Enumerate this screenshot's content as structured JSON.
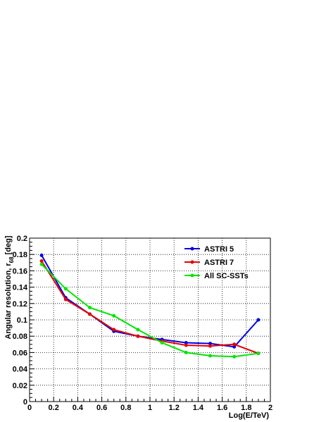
{
  "chart_data": {
    "type": "line",
    "title": "",
    "xlabel": "Log(E/TeV)",
    "ylabel": "Angular resolution, r",
    "ylabel_subscript": "68",
    "ylabel_unit": "[deg]",
    "xlim": [
      0,
      2
    ],
    "ylim": [
      0,
      0.2
    ],
    "x_ticks": [
      "0",
      "0.2",
      "0.4",
      "0.6",
      "0.8",
      "1",
      "1.2",
      "1.4",
      "1.6",
      "1.8",
      "2"
    ],
    "y_ticks": [
      "0",
      "0.02",
      "0.04",
      "0.06",
      "0.08",
      "0.1",
      "0.12",
      "0.14",
      "0.16",
      "0.18",
      "0.2"
    ],
    "grid": true,
    "legend_position": "top-right",
    "series": [
      {
        "name": "ASTRI 5",
        "color": "#0000e6",
        "x": [
          0.1,
          0.3,
          0.5,
          0.7,
          0.9,
          1.1,
          1.3,
          1.5,
          1.7,
          1.9
        ],
        "y": [
          0.179,
          0.127,
          0.107,
          0.086,
          0.08,
          0.076,
          0.072,
          0.071,
          0.067,
          0.1
        ]
      },
      {
        "name": "ASTRI 7",
        "color": "#e60000",
        "x": [
          0.1,
          0.3,
          0.5,
          0.7,
          0.9,
          1.1,
          1.3,
          1.5,
          1.7,
          1.9
        ],
        "y": [
          0.172,
          0.125,
          0.107,
          0.088,
          0.08,
          0.074,
          0.069,
          0.068,
          0.07,
          0.059
        ]
      },
      {
        "name": "All SC-SSTs",
        "color": "#00e600",
        "x": [
          0.1,
          0.3,
          0.5,
          0.7,
          0.9,
          1.1,
          1.3,
          1.5,
          1.7,
          1.9
        ],
        "y": [
          0.168,
          0.138,
          0.115,
          0.105,
          0.088,
          0.072,
          0.06,
          0.056,
          0.055,
          0.059
        ]
      }
    ]
  }
}
